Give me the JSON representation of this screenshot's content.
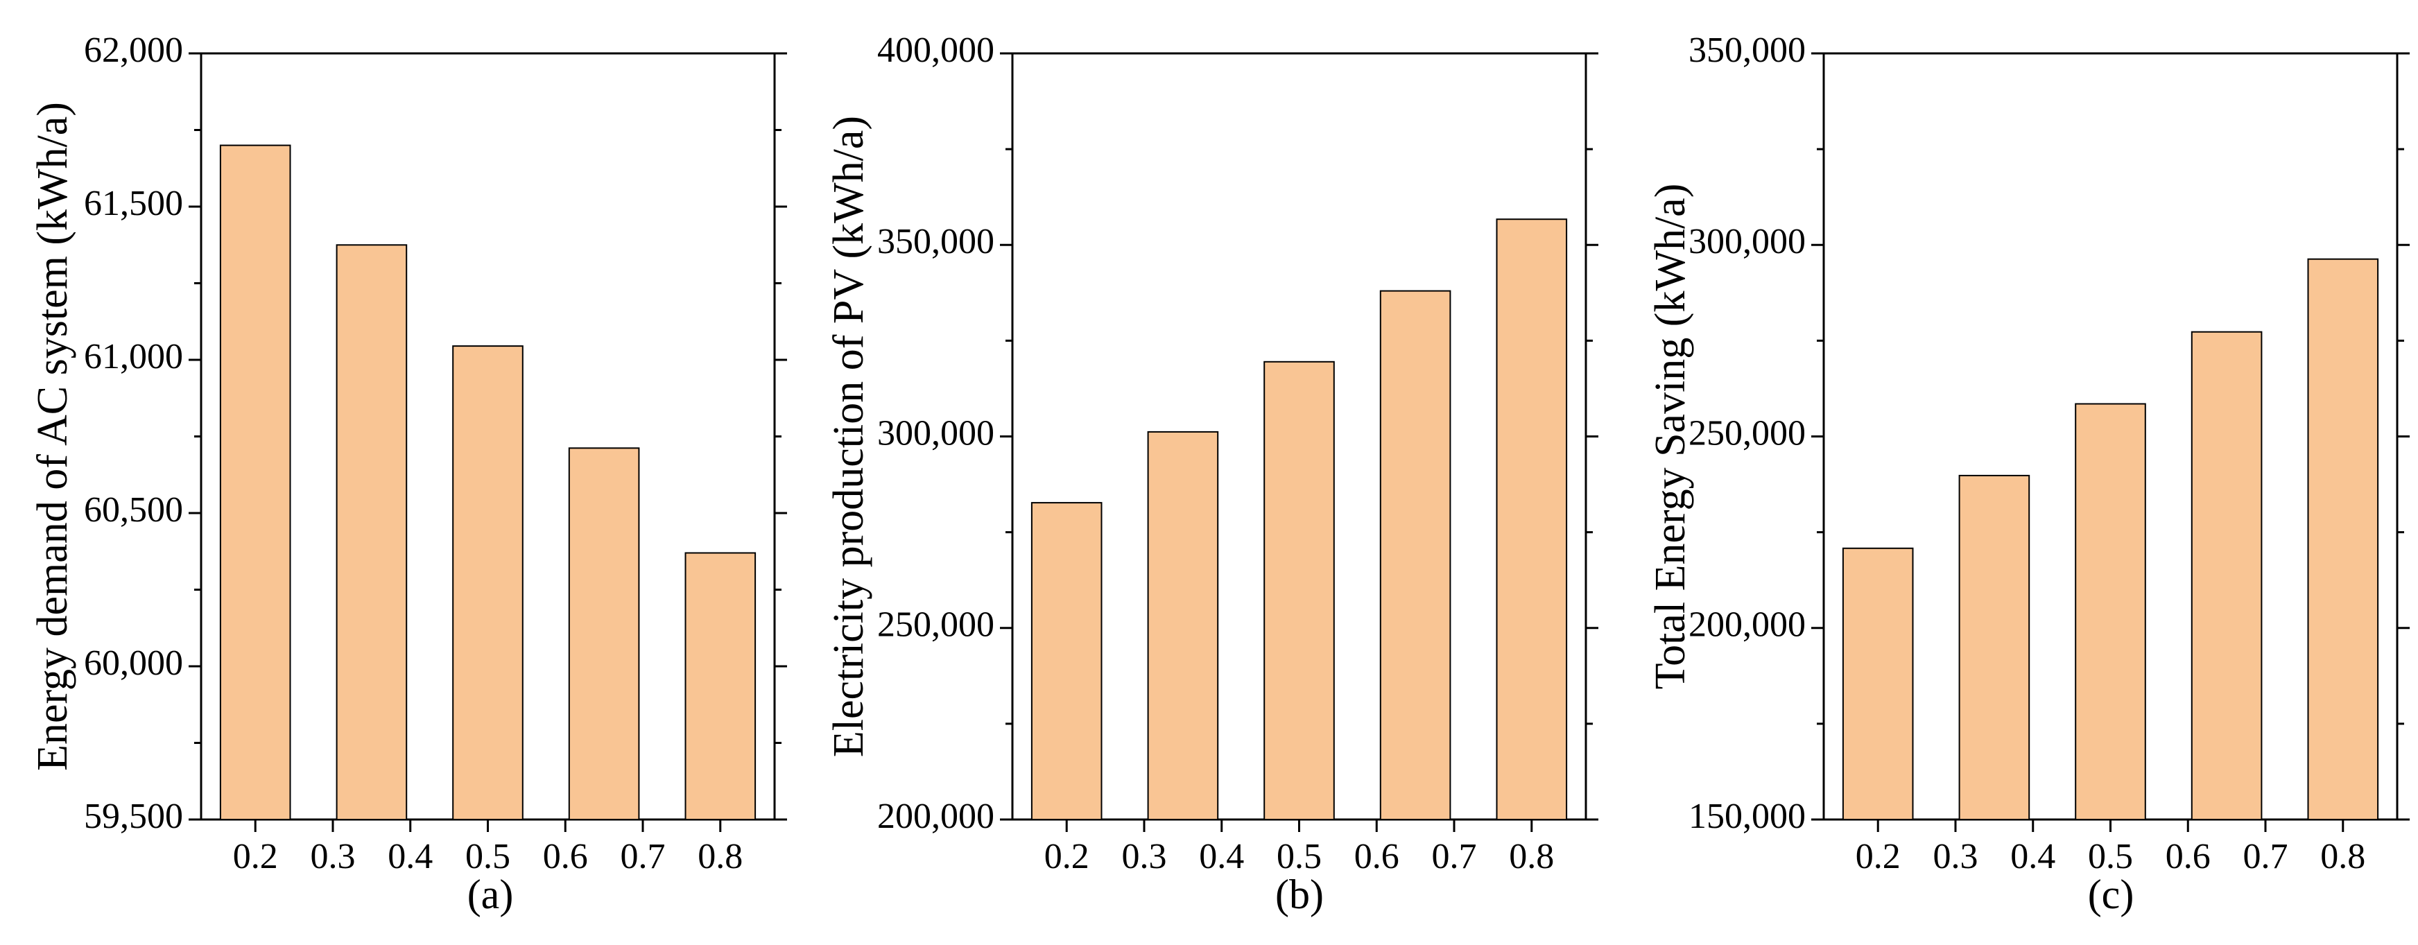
{
  "colors": {
    "bar_fill": "#f9c594",
    "bar_stroke": "#000000",
    "axis": "#000000"
  },
  "chart_data": [
    {
      "type": "bar",
      "panel_label": "(a)",
      "ylabel": "Energy demand of AC system (kWh/a)",
      "xlabel": "",
      "categories": [
        0.2,
        0.35,
        0.5,
        0.65,
        0.8
      ],
      "values": [
        61700,
        61375,
        61045,
        60712,
        60370
      ],
      "xticks": [
        "0.2",
        "0.3",
        "0.4",
        "0.5",
        "0.6",
        "0.7",
        "0.8"
      ],
      "xtick_values": [
        0.2,
        0.3,
        0.4,
        0.5,
        0.6,
        0.7,
        0.8
      ],
      "xlim": [
        0.13,
        0.87
      ],
      "ylim": [
        59500,
        62000
      ],
      "yticks": [
        "59,500",
        "60,000",
        "60,500",
        "61,000",
        "61,500",
        "62,000"
      ],
      "ytick_values": [
        59500,
        60000,
        60500,
        61000,
        61500,
        62000
      ],
      "grid": false
    },
    {
      "type": "bar",
      "panel_label": "(b)",
      "ylabel": "Electricity production of PV (kWh/a)",
      "xlabel": "",
      "categories": [
        0.2,
        0.35,
        0.5,
        0.65,
        0.8
      ],
      "values": [
        282700,
        301200,
        319500,
        338000,
        356700
      ],
      "xticks": [
        "0.2",
        "0.3",
        "0.4",
        "0.5",
        "0.6",
        "0.7",
        "0.8"
      ],
      "xtick_values": [
        0.2,
        0.3,
        0.4,
        0.5,
        0.6,
        0.7,
        0.8
      ],
      "xlim": [
        0.13,
        0.87
      ],
      "ylim": [
        200000,
        400000
      ],
      "yticks": [
        "200,000",
        "250,000",
        "300,000",
        "350,000",
        "400,000"
      ],
      "ytick_values": [
        200000,
        250000,
        300000,
        350000,
        400000
      ],
      "grid": false
    },
    {
      "type": "bar",
      "panel_label": "(c)",
      "ylabel": "Total Energy Saving (kWh/a)",
      "xlabel": "",
      "categories": [
        0.2,
        0.35,
        0.5,
        0.65,
        0.8
      ],
      "values": [
        220800,
        239800,
        258500,
        277300,
        296300
      ],
      "xticks": [
        "0.2",
        "0.3",
        "0.4",
        "0.5",
        "0.6",
        "0.7",
        "0.8"
      ],
      "xtick_values": [
        0.2,
        0.3,
        0.4,
        0.5,
        0.6,
        0.7,
        0.8
      ],
      "xlim": [
        0.13,
        0.87
      ],
      "ylim": [
        150000,
        350000
      ],
      "yticks": [
        "150,000",
        "200,000",
        "250,000",
        "300,000",
        "350,000"
      ],
      "ytick_values": [
        150000,
        200000,
        250000,
        300000,
        350000
      ],
      "grid": false
    }
  ]
}
